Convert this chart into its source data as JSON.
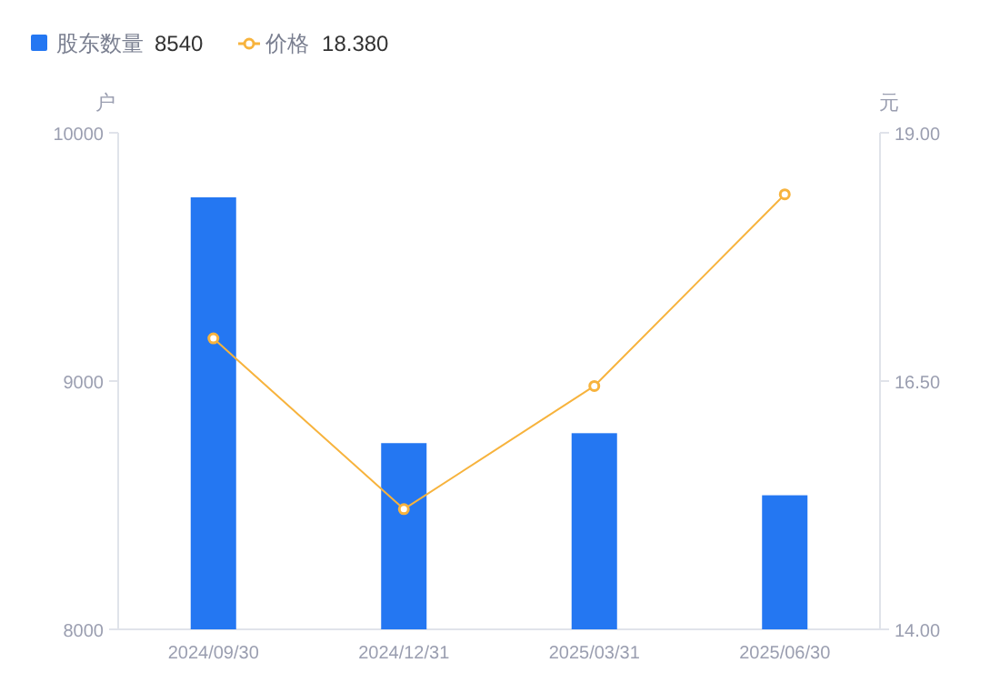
{
  "chart_data": {
    "type": "bar",
    "categories": [
      "2024/09/30",
      "2024/12/31",
      "2025/03/31",
      "2025/06/30"
    ],
    "series": [
      {
        "name": "股东数量",
        "color": "#2477f2",
        "values": [
          9740,
          8750,
          8790,
          8540
        ]
      },
      {
        "name": "价格",
        "type": "line",
        "axis": "y2",
        "color": "#f7b33d",
        "marker": "circle",
        "values": [
          16.93,
          15.21,
          16.45,
          18.38
        ]
      }
    ],
    "ylabel": "户",
    "y2label": "元",
    "ylim": [
      8000,
      10000
    ],
    "yticks": [
      8000,
      9000,
      10000
    ],
    "y2lim": [
      14,
      19
    ],
    "y2ticks": [
      {
        "value": 14,
        "label": "14.00"
      },
      {
        "value": 16.5,
        "label": "16.50"
      },
      {
        "value": 19,
        "label": "19.00"
      }
    ],
    "legend": "top left",
    "annotations": [
      "8540",
      "18.380"
    ]
  }
}
